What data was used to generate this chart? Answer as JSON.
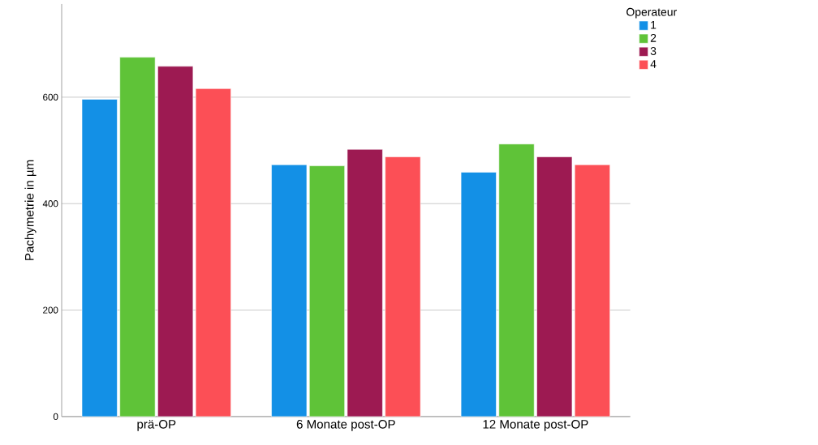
{
  "chart_data": {
    "type": "bar",
    "ylabel": "Pachymetrie in µm",
    "legend_title": "Operateur",
    "categories": [
      "prä-OP",
      "6 Monate post-OP",
      "12 Monate post-OP"
    ],
    "series": [
      {
        "name": "1",
        "color": "#1390e6",
        "values": [
          596,
          473,
          459
        ]
      },
      {
        "name": "2",
        "color": "#5fc338",
        "values": [
          675,
          471,
          512
        ]
      },
      {
        "name": "3",
        "color": "#9d1a52",
        "values": [
          658,
          502,
          488
        ]
      },
      {
        "name": "4",
        "color": "#fc4f56",
        "values": [
          616,
          488,
          473
        ]
      }
    ],
    "ylim": [
      0,
      775
    ],
    "yticks": [
      0,
      200,
      400,
      600
    ],
    "grid": "y",
    "legend": "top right"
  }
}
